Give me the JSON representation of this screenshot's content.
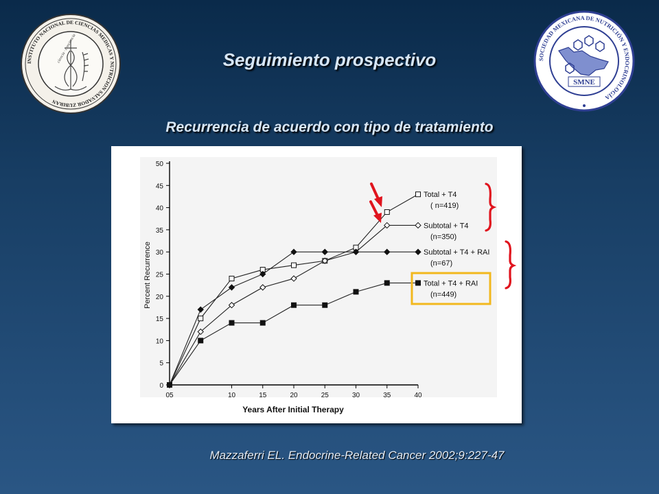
{
  "slide": {
    "title": "Seguimiento prospectivo",
    "subtitle": "Recurrencia de acuerdo con tipo de tratamiento",
    "citation": "Mazzaferri EL. Endocrine-Related Cancer 2002;9:227-47"
  },
  "logos": {
    "left": {
      "ring_text": "INSTITUTO NACIONAL DE CIENCIAS MEDICAS Y NUTRICION SALVADOR ZUBIRAN",
      "inner_text": "ciencia · conciencia"
    },
    "right": {
      "ring_text": "SOCIEDAD MEXICANA DE NUTRICIÓN Y ENDOCRINOLOGÍA",
      "inner_text": "SMNE"
    }
  },
  "colors": {
    "annotation_red": "#e0141e",
    "highlight_yellow": "#f2b81e"
  },
  "chart_data": {
    "type": "line",
    "xlabel": "Years After Initial Therapy",
    "ylabel": "Percent Recurrence",
    "x_ticks": [
      "05",
      "10",
      "15",
      "20",
      "25",
      "30",
      "35",
      "40"
    ],
    "y_ticks": [
      "0",
      "5",
      "10",
      "15",
      "20",
      "25",
      "30",
      "35",
      "40",
      "45",
      "50"
    ],
    "xlim": [
      0,
      40
    ],
    "ylim": [
      0,
      50
    ],
    "grid": false,
    "legend_position": "right, at line ends",
    "series": [
      {
        "name": "Total + T4",
        "name_line2": "( n=419)",
        "marker": "open-square",
        "x": [
          0,
          5,
          10,
          15,
          20,
          25,
          30,
          35,
          40
        ],
        "values": [
          0,
          15,
          24,
          26,
          27,
          28,
          31,
          39,
          43
        ]
      },
      {
        "name": "Subtotal + T4",
        "name_line2": "(n=350)",
        "marker": "open-diamond",
        "x": [
          0,
          5,
          10,
          15,
          20,
          25,
          30,
          35,
          40
        ],
        "values": [
          0,
          12,
          18,
          22,
          24,
          28,
          30,
          36,
          36
        ]
      },
      {
        "name": "Subtotal + T4 + RAI",
        "name_line2": "(n=67)",
        "marker": "filled-diamond",
        "x": [
          0,
          5,
          10,
          15,
          20,
          25,
          30,
          35,
          40
        ],
        "values": [
          0,
          17,
          22,
          25,
          30,
          30,
          30,
          30,
          30
        ]
      },
      {
        "name": "Total + T4 + RAI",
        "name_line2": "(n=449)",
        "marker": "filled-square",
        "x": [
          0,
          5,
          10,
          15,
          20,
          25,
          30,
          35,
          40
        ],
        "values": [
          0,
          10,
          14,
          14,
          18,
          18,
          21,
          23,
          23
        ]
      }
    ]
  }
}
